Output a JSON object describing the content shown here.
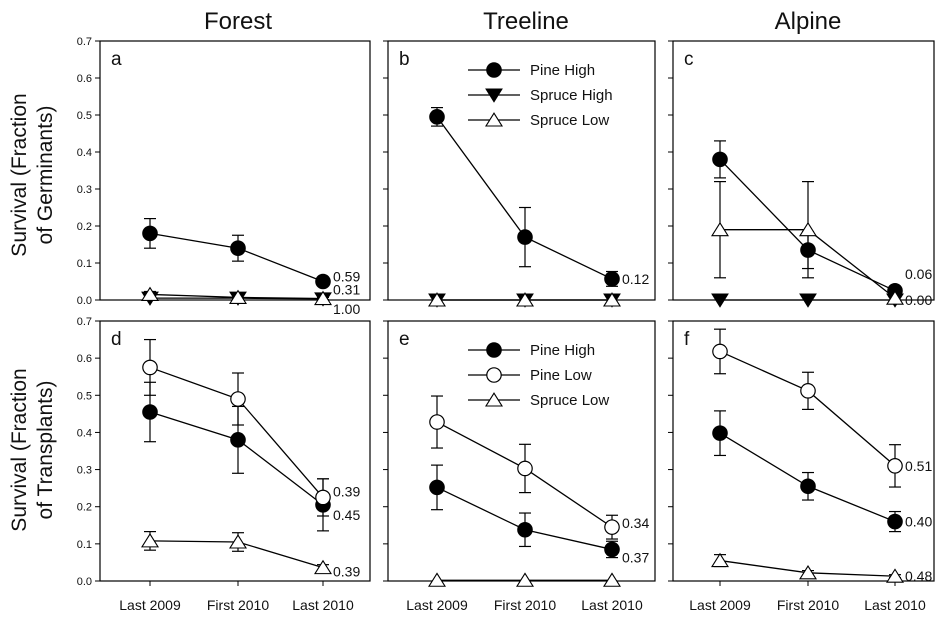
{
  "figure": {
    "row_titles": [
      [
        "Survival (Fraction",
        "of Germinants)"
      ],
      [
        "Survival (Fraction",
        "of Transplants)"
      ]
    ]
  },
  "chart_data": [
    {
      "type": "line",
      "panel": "a",
      "title": "Forest",
      "categories": [
        "Last 2009",
        "First 2010",
        "Last 2010"
      ],
      "ylim": [
        0,
        0.7
      ],
      "yticks": [
        "0.0",
        "0.1",
        "0.2",
        "0.3",
        "0.4",
        "0.5",
        "0.6",
        "0.7"
      ],
      "series": [
        {
          "marker": "filled-circle",
          "values": [
            0.18,
            0.14,
            0.05
          ],
          "errors": [
            0.04,
            0.035,
            0.01
          ],
          "end_label": "0.59"
        },
        {
          "marker": "filled-triangle-down",
          "values": [
            0.005,
            0.005,
            0.003
          ],
          "errors": [
            0,
            0,
            0
          ],
          "end_label": "1.00"
        },
        {
          "marker": "open-triangle-up",
          "values": [
            0.015,
            0.007,
            0.004
          ],
          "errors": [
            0.008,
            0.005,
            0.003
          ],
          "end_label": "0.31"
        }
      ]
    },
    {
      "type": "line",
      "panel": "b",
      "title": "Treeline",
      "categories": [
        "Last 2009",
        "First 2010",
        "Last 2010"
      ],
      "ylim": [
        0,
        0.7
      ],
      "legend": [
        "Pine High",
        "Spruce High",
        "Spruce Low"
      ],
      "series": [
        {
          "name": "Pine High",
          "marker": "filled-circle",
          "values": [
            0.495,
            0.17,
            0.057
          ],
          "errors": [
            0.025,
            0.08,
            0.02
          ],
          "end_label": "0.12"
        },
        {
          "name": "Spruce High",
          "marker": "filled-triangle-down",
          "values": [
            0.0,
            0.0,
            0.0
          ],
          "errors": [
            0,
            0,
            0
          ]
        },
        {
          "name": "Spruce Low",
          "marker": "open-triangle-up",
          "values": [
            0.0,
            0.0,
            0.0
          ],
          "errors": [
            0,
            0,
            0
          ]
        }
      ]
    },
    {
      "type": "line",
      "panel": "c",
      "title": "Alpine",
      "categories": [
        "Last 2009",
        "First 2010",
        "Last 2010"
      ],
      "ylim": [
        0,
        0.7
      ],
      "series": [
        {
          "marker": "filled-circle",
          "values": [
            0.38,
            0.135,
            0.025
          ],
          "errors": [
            0.05,
            0.05,
            0.012
          ],
          "end_label": "0.06"
        },
        {
          "marker": "filled-triangle-down",
          "values": [
            0.0,
            0.0,
            0.0
          ],
          "errors": [
            0,
            0,
            0
          ]
        },
        {
          "marker": "open-triangle-up",
          "values": [
            0.19,
            0.19,
            0.005
          ],
          "errors": [
            0.13,
            0.13,
            0.005
          ],
          "end_label": "0.00"
        }
      ]
    },
    {
      "type": "line",
      "panel": "d",
      "title": "",
      "categories": [
        "Last 2009",
        "First 2010",
        "Last 2010"
      ],
      "ylim": [
        0,
        0.7
      ],
      "yticks": [
        "0.0",
        "0.1",
        "0.2",
        "0.3",
        "0.4",
        "0.5",
        "0.6",
        "0.7"
      ],
      "series": [
        {
          "marker": "filled-circle",
          "values": [
            0.455,
            0.38,
            0.205
          ],
          "errors": [
            0.08,
            0.09,
            0.07
          ],
          "end_label": "0.45"
        },
        {
          "marker": "open-circle",
          "values": [
            0.575,
            0.49,
            0.225
          ],
          "errors": [
            0.075,
            0.07,
            0.05
          ],
          "end_label": "0.39"
        },
        {
          "marker": "open-triangle-up",
          "values": [
            0.108,
            0.105,
            0.036
          ],
          "errors": [
            0.025,
            0.025,
            0.008
          ],
          "end_label": "0.39"
        }
      ]
    },
    {
      "type": "line",
      "panel": "e",
      "title": "",
      "categories": [
        "Last 2009",
        "First 2010",
        "Last 2010"
      ],
      "ylim": [
        0,
        0.7
      ],
      "legend": [
        "Pine High",
        "Pine Low",
        "Spruce Low"
      ],
      "series": [
        {
          "name": "Pine High",
          "marker": "filled-circle",
          "values": [
            0.252,
            0.138,
            0.085
          ],
          "errors": [
            0.06,
            0.045,
            0.022
          ],
          "end_label": "0.37"
        },
        {
          "name": "Pine Low",
          "marker": "open-circle",
          "values": [
            0.428,
            0.303,
            0.145
          ],
          "errors": [
            0.07,
            0.065,
            0.032
          ],
          "end_label": "0.34"
        },
        {
          "name": "Spruce Low",
          "marker": "open-triangle-up",
          "values": [
            0.002,
            0.002,
            0.002
          ],
          "errors": [
            0,
            0,
            0
          ]
        }
      ]
    },
    {
      "type": "line",
      "panel": "f",
      "title": "",
      "categories": [
        "Last 2009",
        "First 2010",
        "Last 2010"
      ],
      "ylim": [
        0,
        0.7
      ],
      "series": [
        {
          "marker": "filled-circle",
          "values": [
            0.398,
            0.255,
            0.16
          ],
          "errors": [
            0.06,
            0.037,
            0.027
          ],
          "end_label": "0.40"
        },
        {
          "marker": "open-circle",
          "values": [
            0.618,
            0.512,
            0.31
          ],
          "errors": [
            0.06,
            0.05,
            0.057
          ],
          "end_label": "0.51"
        },
        {
          "marker": "open-triangle-up",
          "values": [
            0.055,
            0.022,
            0.013
          ],
          "errors": [
            0.016,
            0.006,
            0.004
          ],
          "end_label": "0.48"
        }
      ]
    }
  ]
}
